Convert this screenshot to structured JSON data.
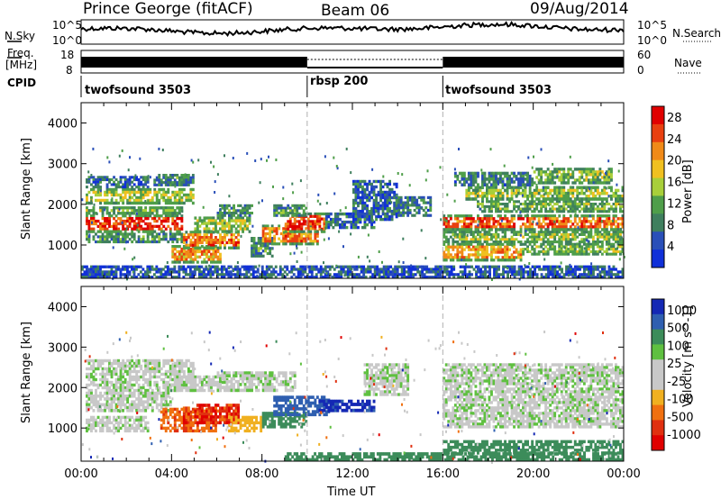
{
  "header": {
    "station": "Prince George (fitACF)",
    "beam": "Beam 06",
    "date": "09/Aug/2014"
  },
  "noise_panel": {
    "left_label": "N.Sky",
    "right_label": "N.Search",
    "left_ticks": [
      "10^5",
      "10^0"
    ],
    "right_ticks": [
      "10^5",
      "10^0"
    ]
  },
  "freq_panel": {
    "left_label_1": "Freq.",
    "left_label_2": "[MHz]",
    "right_label": "Nave",
    "left_ticks": [
      "18",
      "8"
    ],
    "right_ticks": [
      "60",
      "0"
    ]
  },
  "cpid_panel": {
    "label": "CPID",
    "segments": [
      {
        "name": "twofsound 3503",
        "start_h": 0,
        "end_h": 10
      },
      {
        "name": "rbsp 200",
        "start_h": 10,
        "end_h": 16
      },
      {
        "name": "twofsound 3503",
        "start_h": 16,
        "end_h": 24
      }
    ]
  },
  "colors": {
    "power_scale": [
      "#1030d8",
      "#2a4fb8",
      "#3f7f5e",
      "#4f9e4a",
      "#a8cf3a",
      "#f0c020",
      "#f08a18",
      "#e84010",
      "#e00000"
    ],
    "velocity_scale": [
      "#1428b4",
      "#2f5fb0",
      "#3c8c5a",
      "#5fc040",
      "#c8c8c8",
      "#c8c8c8",
      "#f0b020",
      "#f07010",
      "#e03010",
      "#e00000"
    ]
  },
  "chart_data": [
    {
      "type": "heatmap",
      "name": "power",
      "xlabel": "",
      "ylabel": "Slant Range [km]",
      "xlim": [
        0,
        24
      ],
      "ylim": [
        180,
        4500
      ],
      "yticks": [
        "1000",
        "2000",
        "3000",
        "4000"
      ],
      "colorbar_label": "Power [dB]",
      "colorbar_ticks": [
        "4",
        "8",
        "12",
        "16",
        "20",
        "24",
        "28"
      ],
      "colorbar_range": [
        0,
        30
      ],
      "bands": [
        {
          "t0": 0.2,
          "t1": 4.5,
          "r0": 1300,
          "r1": 1750,
          "v": 26
        },
        {
          "t0": 0.2,
          "t1": 4.5,
          "r0": 1050,
          "r1": 1300,
          "v": 10
        },
        {
          "t0": 0.2,
          "t1": 4.5,
          "r0": 1750,
          "r1": 1950,
          "v": 14
        },
        {
          "t0": 0.2,
          "t1": 5.0,
          "r0": 2000,
          "r1": 2400,
          "v": 15
        },
        {
          "t0": 0.2,
          "t1": 3.0,
          "r0": 2400,
          "r1": 2700,
          "v": 6
        },
        {
          "t0": 3.2,
          "t1": 5.0,
          "r0": 2450,
          "r1": 2750,
          "v": 9
        },
        {
          "t0": 4.0,
          "t1": 6.2,
          "r0": 550,
          "r1": 1000,
          "v": 20
        },
        {
          "t0": 4.5,
          "t1": 7.0,
          "r0": 900,
          "r1": 1350,
          "v": 23
        },
        {
          "t0": 5.0,
          "t1": 7.5,
          "r0": 1300,
          "r1": 1700,
          "v": 14
        },
        {
          "t0": 6.0,
          "t1": 7.6,
          "r0": 1700,
          "r1": 2000,
          "v": 10
        },
        {
          "t0": 7.5,
          "t1": 8.5,
          "r0": 700,
          "r1": 1200,
          "v": 9
        },
        {
          "t0": 8.0,
          "t1": 10.5,
          "r0": 1000,
          "r1": 1500,
          "v": 22
        },
        {
          "t0": 9.0,
          "t1": 10.8,
          "r0": 1300,
          "r1": 1800,
          "v": 26
        },
        {
          "t0": 8.5,
          "t1": 10.0,
          "r0": 1700,
          "r1": 2000,
          "v": 10
        },
        {
          "t0": 10.8,
          "t1": 13.0,
          "r0": 1400,
          "r1": 1800,
          "v": 7
        },
        {
          "t0": 12.0,
          "t1": 14.0,
          "r0": 1600,
          "r1": 2600,
          "v": 6
        },
        {
          "t0": 14.0,
          "t1": 15.5,
          "r0": 1700,
          "r1": 2200,
          "v": 8
        },
        {
          "t0": 16.0,
          "t1": 24.0,
          "r0": 1350,
          "r1": 1750,
          "v": 24
        },
        {
          "t0": 16.0,
          "t1": 24.0,
          "r0": 1050,
          "r1": 1350,
          "v": 14
        },
        {
          "t0": 16.0,
          "t1": 19.5,
          "r0": 600,
          "r1": 1050,
          "v": 20
        },
        {
          "t0": 19.5,
          "t1": 24.0,
          "r0": 750,
          "r1": 1050,
          "v": 13
        },
        {
          "t0": 17.5,
          "t1": 24.0,
          "r0": 1800,
          "r1": 2100,
          "v": 12
        },
        {
          "t0": 17.0,
          "t1": 24.0,
          "r0": 2100,
          "r1": 2450,
          "v": 14
        },
        {
          "t0": 16.5,
          "t1": 20.0,
          "r0": 2450,
          "r1": 2800,
          "v": 8
        },
        {
          "t0": 20.0,
          "t1": 23.5,
          "r0": 2500,
          "r1": 2900,
          "v": 13
        },
        {
          "t0": 0.0,
          "t1": 24.0,
          "r0": 180,
          "r1": 500,
          "v": 5
        }
      ]
    },
    {
      "type": "heatmap",
      "name": "velocity",
      "xlabel": "Time UT",
      "ylabel": "Slant Range [km]",
      "xlim": [
        0,
        24
      ],
      "ylim": [
        180,
        4500
      ],
      "yticks": [
        "1000",
        "2000",
        "3000",
        "4000"
      ],
      "xticks": [
        "00:00",
        "04:00",
        "08:00",
        "12:00",
        "16:00",
        "20:00",
        "00:00"
      ],
      "colorbar_label": "Velocity [m s^-1]",
      "colorbar_ticks": [
        "1000",
        "500",
        "100",
        "25",
        "-25",
        "-100",
        "-500",
        "-1000"
      ],
      "bands": [
        {
          "t0": 0.2,
          "t1": 5.0,
          "r0": 1900,
          "r1": 2700,
          "v": 0
        },
        {
          "t0": 0.2,
          "t1": 4.0,
          "r0": 1400,
          "r1": 1900,
          "v": 0
        },
        {
          "t0": 4.0,
          "t1": 6.5,
          "r0": 1900,
          "r1": 2300,
          "v": 0
        },
        {
          "t0": 6.0,
          "t1": 9.5,
          "r0": 1900,
          "r1": 2400,
          "v": 0
        },
        {
          "t0": 0.2,
          "t1": 3.0,
          "r0": 900,
          "r1": 1300,
          "v": 0
        },
        {
          "t0": 3.5,
          "t1": 6.0,
          "r0": 900,
          "r1": 1500,
          "v": -400
        },
        {
          "t0": 4.5,
          "t1": 7.0,
          "r0": 1100,
          "r1": 1600,
          "v": -700
        },
        {
          "t0": 6.5,
          "t1": 8.0,
          "r0": 900,
          "r1": 1300,
          "v": -60
        },
        {
          "t0": 8.0,
          "t1": 10.0,
          "r0": 1000,
          "r1": 1400,
          "v": 60
        },
        {
          "t0": 8.5,
          "t1": 11.0,
          "r0": 1300,
          "r1": 1800,
          "v": 300
        },
        {
          "t0": 10.5,
          "t1": 13.0,
          "r0": 1400,
          "r1": 1700,
          "v": 700
        },
        {
          "t0": 12.5,
          "t1": 14.5,
          "r0": 1800,
          "r1": 2600,
          "v": 0
        },
        {
          "t0": 16.0,
          "t1": 24.0,
          "r0": 1800,
          "r1": 2600,
          "v": 0
        },
        {
          "t0": 16.0,
          "t1": 24.0,
          "r0": 1000,
          "r1": 1800,
          "v": 0
        },
        {
          "t0": 16.0,
          "t1": 24.0,
          "r0": 350,
          "r1": 700,
          "v": 60
        },
        {
          "t0": 9.0,
          "t1": 24.0,
          "r0": 180,
          "r1": 400,
          "v": 60
        }
      ]
    }
  ]
}
